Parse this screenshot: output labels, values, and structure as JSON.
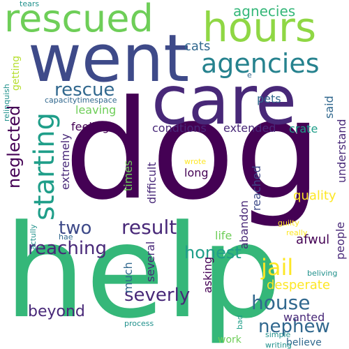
{
  "words": {
    "dog": "dog",
    "help": "help",
    "care": "care",
    "went": "went",
    "hours": "hours",
    "rescued": "rescued",
    "agencies": "agencies",
    "agnecies": "agnecies",
    "starting": "starting",
    "result": "result",
    "jail": "jail",
    "house": "house",
    "nephew": "nephew",
    "severly": "severly",
    "reaching": "reaching",
    "honest": "honest",
    "rescue": "rescue",
    "neglected": "neglected",
    "two": "two",
    "beyond": "beyond",
    "cats": "cats",
    "pets": "pets",
    "said": "said",
    "leaving": "leaving",
    "feeling": "feeling",
    "condtions": "condtions",
    "extended": "extended",
    "crate": "crate",
    "understand": "understand",
    "extremely": "extremely",
    "times": "times",
    "difficult": "difficult",
    "long": "long",
    "reached": "reached",
    "quality": "quality",
    "abandon": "abandon",
    "afwul": "afwul",
    "people": "people",
    "life": "life",
    "several": "several",
    "much": "much",
    "asking": "asking",
    "desperate": "desperate",
    "wanted": "wanted",
    "believe": "believe",
    "work": "work",
    "guilty": "guilty",
    "really": "really",
    "beliving": "beliving",
    "simple": "simple",
    "writing": "writing",
    "process": "process",
    "bad": "bad",
    "wrote": "wrote",
    "hae": "hae",
    "actully": "actully",
    "tears": "tears",
    "getting": "getting",
    "relinquish": "relinquish",
    "capacitytimespace": "capacitytimespace",
    "e": "e"
  }
}
